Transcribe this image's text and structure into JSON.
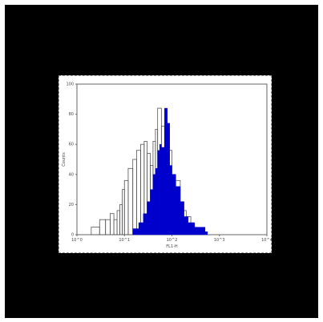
{
  "chart_data": {
    "type": "histogram",
    "title": "",
    "xlabel": "FL1-H",
    "ylabel": "Counts",
    "x_scale": "log",
    "xlim": [
      1,
      10000
    ],
    "ylim": [
      0,
      100
    ],
    "grid": false,
    "x_ticks": [
      "10^0",
      "10^1",
      "10^2",
      "10^3",
      "10^4"
    ],
    "y_ticks": [
      "0",
      "20",
      "40",
      "60",
      "80",
      "100"
    ],
    "series": [
      {
        "style": "open outline",
        "color": "#555555",
        "x": [
          2,
          3,
          4,
          5,
          6,
          7,
          8,
          9,
          10,
          12,
          15,
          18,
          22,
          26,
          30,
          35,
          40,
          45,
          50,
          60,
          70,
          80,
          100,
          120,
          150,
          200,
          250,
          300,
          400
        ],
        "values": [
          5,
          10,
          10,
          14,
          10,
          16,
          20,
          30,
          36,
          44,
          50,
          56,
          60,
          62,
          54,
          46,
          62,
          70,
          84,
          72,
          60,
          56,
          40,
          36,
          16,
          12,
          6,
          4,
          2
        ]
      },
      {
        "style": "filled",
        "color": "#0000cc",
        "x": [
          15,
          20,
          25,
          30,
          35,
          40,
          45,
          50,
          55,
          60,
          70,
          80,
          90,
          100,
          120,
          150,
          180,
          220,
          300,
          500
        ],
        "values": [
          4,
          8,
          14,
          22,
          30,
          40,
          44,
          56,
          60,
          58,
          84,
          74,
          46,
          40,
          32,
          22,
          12,
          8,
          5,
          2
        ]
      }
    ]
  },
  "colors": {
    "frame": "#000000",
    "panel_background": "#ffffff",
    "outline_series": "#555555",
    "filled_series": "#0000cc"
  }
}
